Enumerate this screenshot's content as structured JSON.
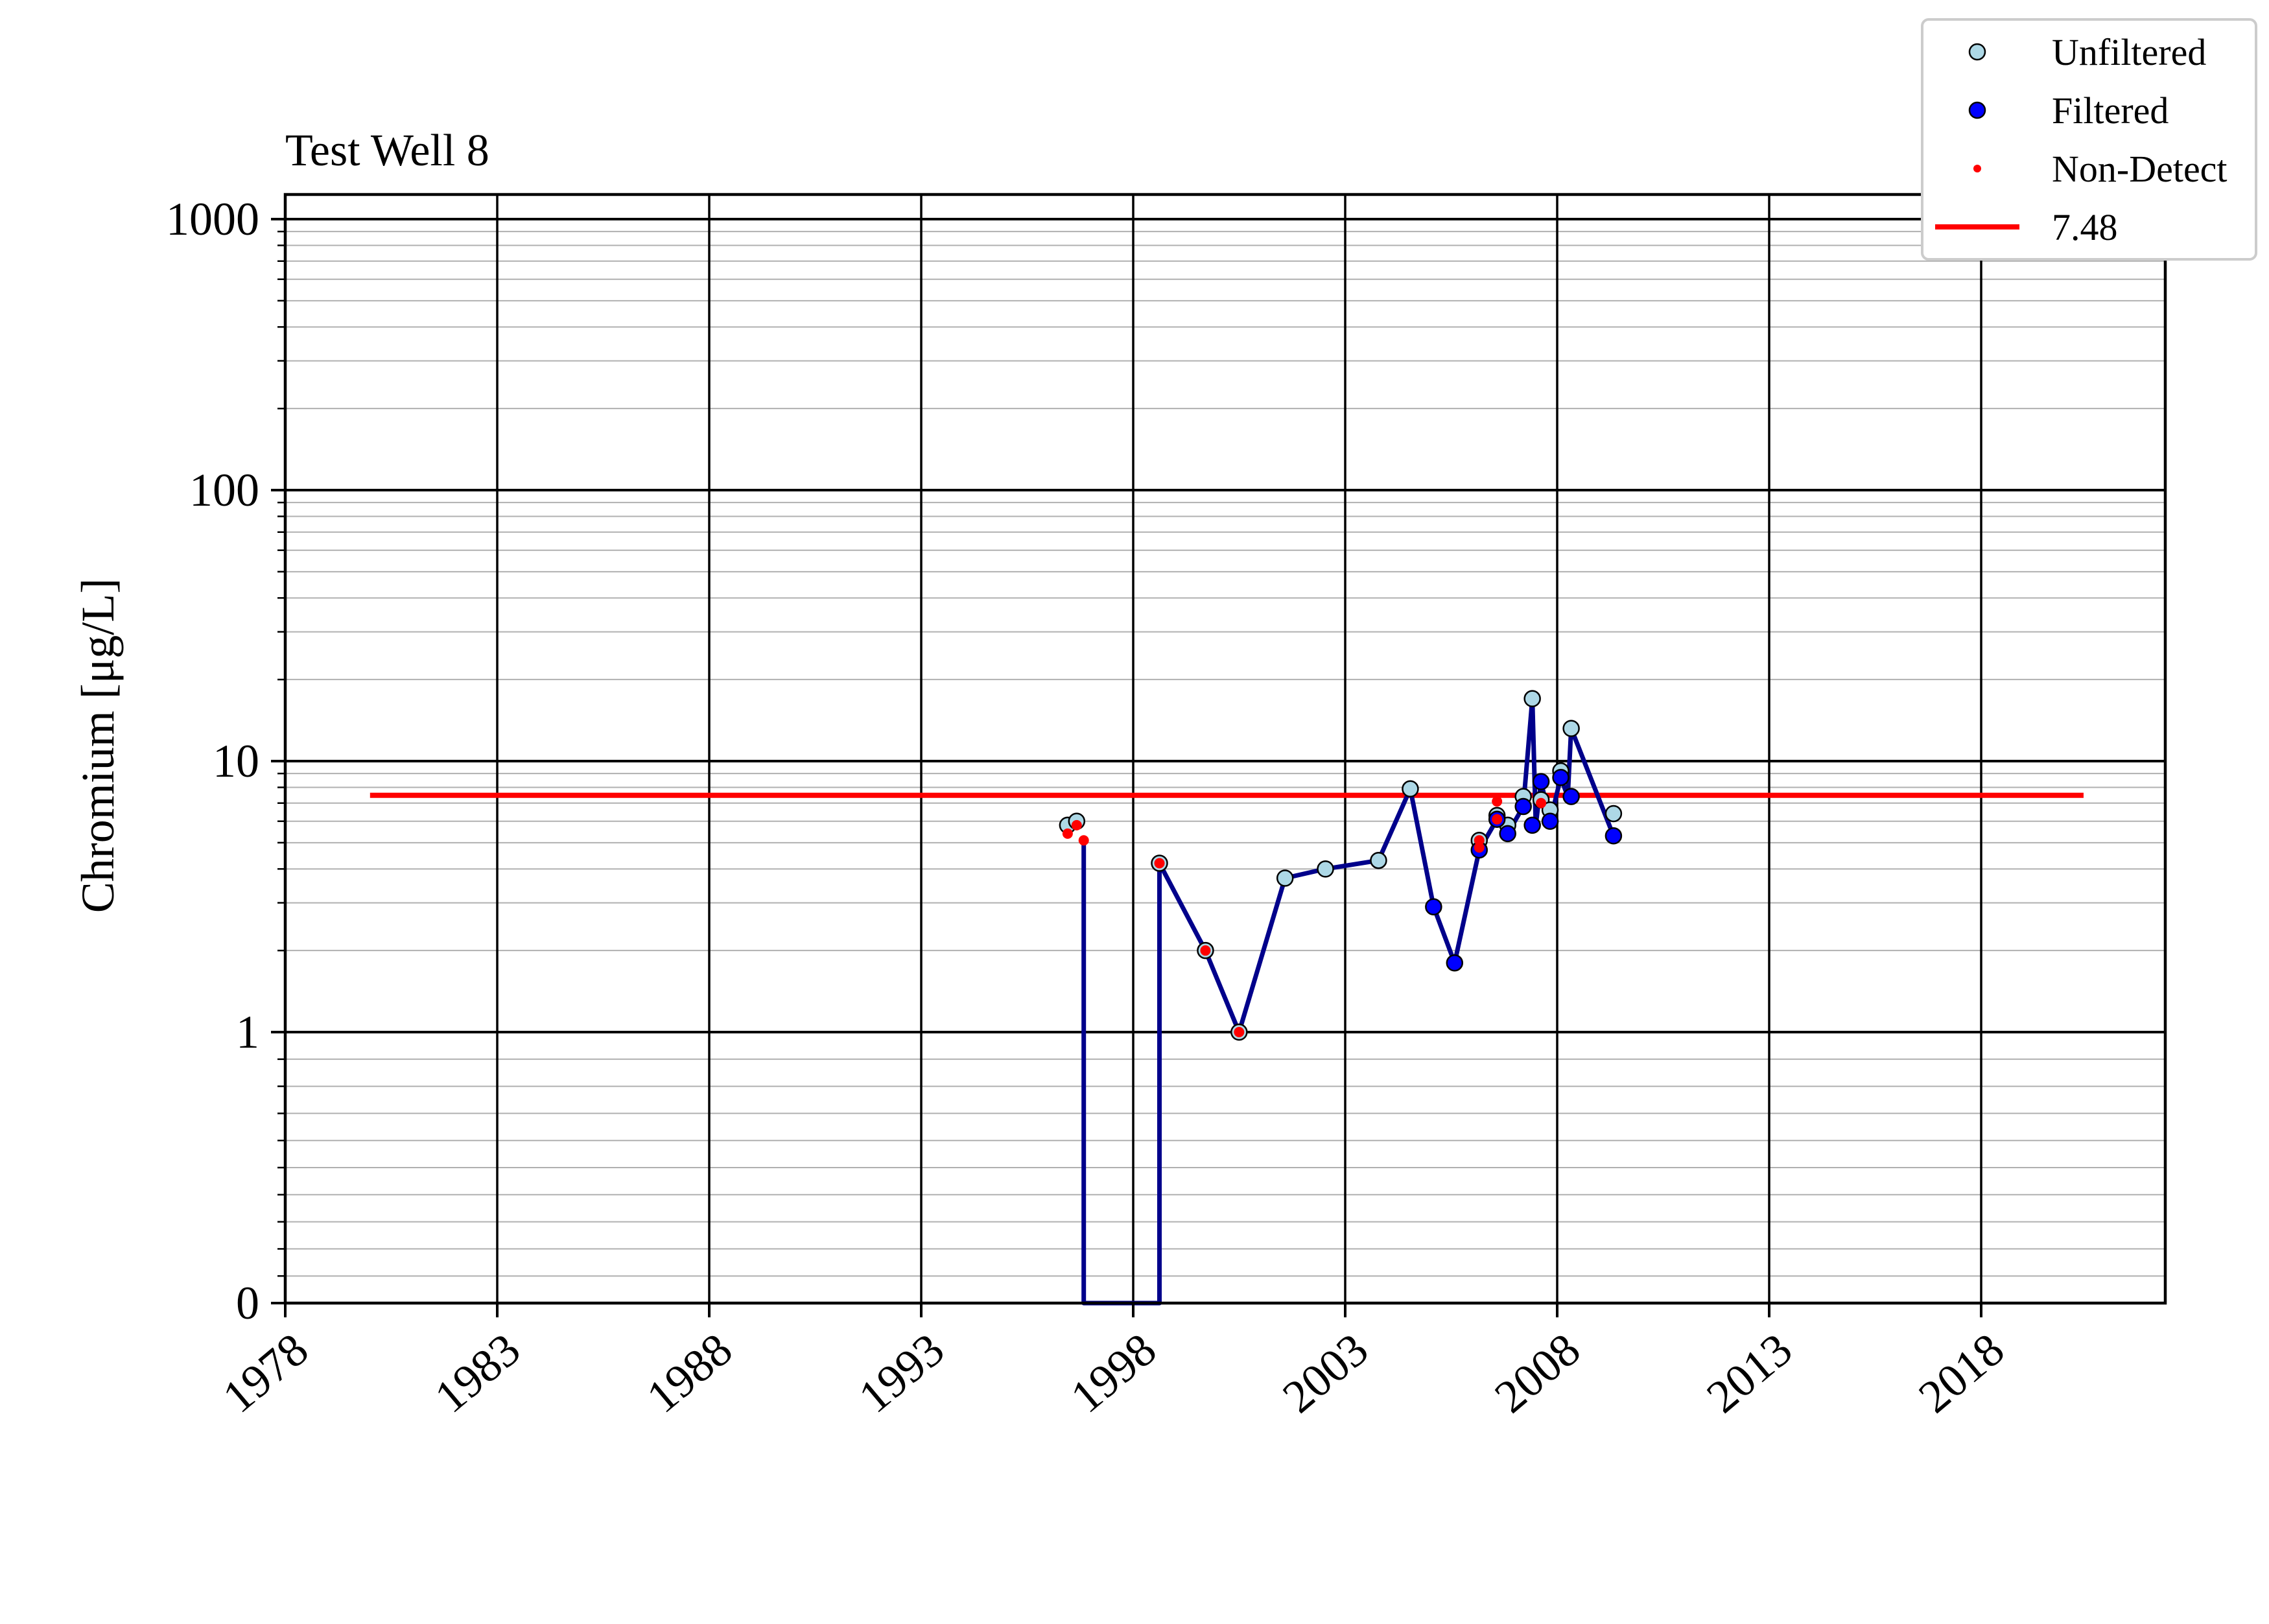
{
  "chart_data": {
    "type": "line",
    "title": "Test Well 8",
    "xlabel": "",
    "ylabel": "Chromium [μg/L]",
    "y_scale": "symlog",
    "ylim": [
      0,
      1000
    ],
    "xlim": [
      "1978-01-01",
      "2022-06-01"
    ],
    "x_ticks": [
      "1978",
      "1983",
      "1988",
      "1993",
      "1998",
      "2003",
      "2008",
      "2013",
      "2018"
    ],
    "y_ticks": [
      "0",
      "1",
      "10",
      "100",
      "1000"
    ],
    "grid": true,
    "legend_position": "top-right",
    "series": [
      {
        "name": "Unfiltered",
        "type": "scatter",
        "color": "#add8e6",
        "points": [
          {
            "x": "1996-06-15",
            "y": 5.8
          },
          {
            "x": "1996-09-01",
            "y": 6.0
          },
          {
            "x": "1998-08-15",
            "y": 4.2
          },
          {
            "x": "1999-09-15",
            "y": 2.0
          },
          {
            "x": "2000-07-01",
            "y": 1.0
          },
          {
            "x": "2001-08-01",
            "y": 3.7
          },
          {
            "x": "2002-07-15",
            "y": 4.0
          },
          {
            "x": "2003-10-15",
            "y": 4.3
          },
          {
            "x": "2004-07-15",
            "y": 7.9
          },
          {
            "x": "2006-03-01",
            "y": 5.1
          },
          {
            "x": "2006-08-01",
            "y": 6.3
          },
          {
            "x": "2006-11-01",
            "y": 5.8
          },
          {
            "x": "2007-03-15",
            "y": 7.4
          },
          {
            "x": "2007-06-01",
            "y": 17.0
          },
          {
            "x": "2007-08-15",
            "y": 7.2
          },
          {
            "x": "2007-11-01",
            "y": 6.6
          },
          {
            "x": "2008-02-01",
            "y": 9.2
          },
          {
            "x": "2008-05-01",
            "y": 13.2
          },
          {
            "x": "2009-05-01",
            "y": 6.4
          }
        ]
      },
      {
        "name": "Filtered",
        "type": "scatter",
        "color": "#0000ff",
        "points": [
          {
            "x": "2005-02-01",
            "y": 2.9
          },
          {
            "x": "2005-08-01",
            "y": 1.8
          },
          {
            "x": "2006-03-01",
            "y": 4.7
          },
          {
            "x": "2006-08-01",
            "y": 6.1
          },
          {
            "x": "2006-11-01",
            "y": 5.4
          },
          {
            "x": "2007-03-15",
            "y": 6.8
          },
          {
            "x": "2007-06-01",
            "y": 5.8
          },
          {
            "x": "2007-08-15",
            "y": 8.4
          },
          {
            "x": "2007-11-01",
            "y": 6.0
          },
          {
            "x": "2008-02-01",
            "y": 8.7
          },
          {
            "x": "2008-05-01",
            "y": 7.4
          },
          {
            "x": "2009-05-01",
            "y": 5.3
          }
        ]
      },
      {
        "name": "Non-Detect",
        "type": "scatter",
        "color": "#ff0000",
        "points": [
          {
            "x": "1996-06-15",
            "y": 5.4
          },
          {
            "x": "1996-09-01",
            "y": 5.8
          },
          {
            "x": "1996-11-01",
            "y": 5.1
          },
          {
            "x": "1998-08-15",
            "y": 4.2
          },
          {
            "x": "1999-09-15",
            "y": 2.0
          },
          {
            "x": "2000-07-01",
            "y": 1.0
          },
          {
            "x": "2006-03-01",
            "y": 4.8
          },
          {
            "x": "2006-03-01",
            "y": 5.1
          },
          {
            "x": "2006-08-01",
            "y": 7.1
          },
          {
            "x": "2006-08-01",
            "y": 6.1
          },
          {
            "x": "2007-08-15",
            "y": 7.0
          }
        ]
      },
      {
        "name": "",
        "type": "line",
        "color": "#00008b",
        "points": [
          {
            "x": "1996-11-01",
            "y": 5.1
          },
          {
            "x": "1996-11-01",
            "y": 0
          },
          {
            "x": "1998-08-15",
            "y": 0
          },
          {
            "x": "1998-08-15",
            "y": 4.2
          },
          {
            "x": "1999-09-15",
            "y": 2.0
          },
          {
            "x": "2000-07-01",
            "y": 1.0
          },
          {
            "x": "2001-08-01",
            "y": 3.7
          },
          {
            "x": "2002-07-15",
            "y": 4.0
          },
          {
            "x": "2003-10-15",
            "y": 4.3
          },
          {
            "x": "2004-07-15",
            "y": 7.9
          },
          {
            "x": "2005-02-01",
            "y": 2.9
          },
          {
            "x": "2005-08-01",
            "y": 1.8
          },
          {
            "x": "2006-03-01",
            "y": 4.7
          },
          {
            "x": "2006-08-01",
            "y": 6.1
          },
          {
            "x": "2006-11-01",
            "y": 5.4
          },
          {
            "x": "2007-03-15",
            "y": 6.8
          },
          {
            "x": "2007-06-01",
            "y": 17.0
          },
          {
            "x": "2007-07-01",
            "y": 5.8
          },
          {
            "x": "2007-08-15",
            "y": 8.4
          },
          {
            "x": "2007-11-01",
            "y": 6.0
          },
          {
            "x": "2008-02-01",
            "y": 8.7
          },
          {
            "x": "2008-04-01",
            "y": 7.4
          },
          {
            "x": "2008-05-01",
            "y": 13.2
          },
          {
            "x": "2009-05-01",
            "y": 5.3
          }
        ]
      }
    ],
    "reference_line": {
      "label": "7.48",
      "value": 7.48,
      "x_start": "1980-01-01",
      "x_end": "2020-06-01",
      "color": "#ff0000"
    },
    "legend": [
      {
        "label": "Unfiltered",
        "marker": "circle",
        "color": "#add8e6"
      },
      {
        "label": "Filtered",
        "marker": "circle",
        "color": "#0000ff"
      },
      {
        "label": "Non-Detect",
        "marker": "dot",
        "color": "#ff0000"
      },
      {
        "label": "7.48",
        "marker": "line",
        "color": "#ff0000"
      }
    ]
  }
}
